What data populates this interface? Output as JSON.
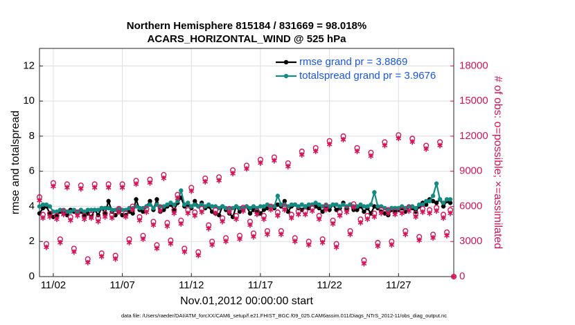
{
  "chart_data": {
    "type": "line",
    "title": "Northern Hemisphere 815184 / 831669 = 98.018%",
    "subtitle": "ACARS_HORIZONTAL_WIND @ 525 hPa",
    "xlabel": "Nov.01,2012 00:00:00 start",
    "ylabel": "rmse and totalspread",
    "y2label": "# of obs: o=possible; ×=assimilated",
    "footnote": "data file: /Users/raeder/DAI/ATM_forcXX/CAM6_setup/f.e21.FHIST_BGC.f09_025.CAM6assim.011/Diags_NTrS_2012-11/obs_diag_output.nc",
    "grid": true,
    "legend": "upper right",
    "xlim": [
      0,
      30
    ],
    "ylim": [
      0,
      13
    ],
    "y2lim": [
      0,
      19500
    ],
    "xticks": [
      {
        "value": 1,
        "label": "11/02"
      },
      {
        "value": 6,
        "label": "11/07"
      },
      {
        "value": 11,
        "label": "11/12"
      },
      {
        "value": 16,
        "label": "11/17"
      },
      {
        "value": 21,
        "label": "11/22"
      },
      {
        "value": 26,
        "label": "11/27"
      }
    ],
    "yticks": [
      0,
      2,
      4,
      6,
      8,
      10,
      12
    ],
    "y2ticks": [
      0,
      3000,
      6000,
      9000,
      12000,
      15000,
      18000
    ],
    "x": [
      0,
      0.25,
      0.5,
      0.75,
      1,
      1.25,
      1.5,
      1.75,
      2,
      2.25,
      2.5,
      2.75,
      3,
      3.25,
      3.5,
      3.75,
      4,
      4.25,
      4.5,
      4.75,
      5,
      5.25,
      5.5,
      5.75,
      6,
      6.25,
      6.5,
      6.75,
      7,
      7.25,
      7.5,
      7.75,
      8,
      8.25,
      8.5,
      8.75,
      9,
      9.25,
      9.5,
      9.75,
      10,
      10.25,
      10.5,
      10.75,
      11,
      11.25,
      11.5,
      11.75,
      12,
      12.25,
      12.5,
      12.75,
      13,
      13.25,
      13.5,
      13.75,
      14,
      14.25,
      14.5,
      14.75,
      15,
      15.25,
      15.5,
      15.75,
      16,
      16.25,
      16.5,
      16.75,
      17,
      17.25,
      17.5,
      17.75,
      18,
      18.25,
      18.5,
      18.75,
      19,
      19.25,
      19.5,
      19.75,
      20,
      20.25,
      20.5,
      20.75,
      21,
      21.25,
      21.5,
      21.75,
      22,
      22.25,
      22.5,
      22.75,
      23,
      23.25,
      23.5,
      23.75,
      24,
      24.25,
      24.5,
      24.75,
      25,
      25.25,
      25.5,
      25.75,
      26,
      26.25,
      26.5,
      26.75,
      27,
      27.25,
      27.5,
      27.75,
      28,
      28.25,
      28.5,
      28.75,
      29,
      29.25,
      29.5,
      29.75,
      30
    ],
    "series": [
      {
        "name": "rmse grand pr = 3.8869",
        "color": "#000000",
        "marker": "o",
        "values": [
          3.6,
          3.9,
          4.0,
          3.6,
          3.4,
          3.5,
          3.7,
          3.6,
          3.5,
          3.8,
          3.7,
          3.6,
          3.7,
          3.5,
          3.6,
          3.4,
          3.8,
          3.5,
          3.9,
          3.6,
          4.3,
          3.7,
          3.5,
          3.7,
          3.5,
          3.5,
          3.7,
          3.6,
          4.4,
          3.8,
          3.7,
          4.0,
          4.3,
          3.8,
          4.4,
          3.7,
          3.8,
          4.0,
          4.1,
          3.8,
          4.2,
          4.5,
          4.0,
          4.1,
          3.9,
          4.3,
          4.0,
          4.2,
          3.9,
          4.0,
          3.7,
          3.6,
          3.5,
          4.0,
          3.8,
          3.6,
          3.4,
          4.0,
          3.7,
          3.8,
          4.0,
          3.6,
          3.8,
          3.7,
          3.6,
          3.8,
          3.9,
          4.0,
          3.9,
          4.1,
          4.0,
          4.3,
          3.7,
          4.0,
          4.1,
          3.9,
          3.8,
          4.0,
          3.9,
          4.1,
          4.0,
          3.9,
          3.7,
          4.0,
          3.8,
          4.1,
          3.8,
          3.9,
          4.2,
          3.9,
          4.1,
          3.8,
          3.8,
          4.0,
          3.7,
          3.9,
          3.6,
          4.0,
          3.9,
          3.7,
          3.6,
          3.5,
          3.8,
          3.7,
          3.8,
          3.9,
          3.7,
          4.0,
          3.9,
          3.7,
          4.0,
          4.2,
          4.1,
          4.4,
          4.3,
          4.2,
          4.4,
          4.0,
          4.3,
          4.2,
          null
        ]
      },
      {
        "name": "totalspread grand pr = 3.9676",
        "color": "#138a82",
        "marker": "o",
        "values": [
          4.0,
          4.1,
          4.1,
          4.0,
          3.7,
          3.7,
          3.8,
          3.8,
          3.7,
          3.7,
          3.8,
          3.7,
          3.8,
          3.7,
          3.8,
          3.8,
          3.8,
          3.8,
          3.9,
          3.9,
          3.9,
          3.8,
          3.8,
          3.9,
          3.8,
          3.8,
          3.9,
          3.9,
          4.0,
          3.9,
          3.9,
          4.0,
          4.1,
          3.9,
          4.1,
          4.0,
          4.0,
          4.1,
          4.2,
          4.1,
          4.3,
          4.9,
          4.1,
          4.2,
          4.0,
          4.1,
          4.0,
          4.1,
          4.0,
          4.1,
          4.0,
          4.0,
          3.9,
          4.0,
          3.9,
          3.9,
          3.9,
          4.0,
          3.9,
          3.9,
          4.0,
          3.9,
          4.0,
          3.9,
          4.0,
          4.0,
          4.1,
          4.0,
          4.0,
          4.6,
          4.1,
          4.1,
          4.0,
          4.1,
          4.1,
          4.0,
          4.1,
          4.0,
          4.1,
          4.1,
          4.2,
          4.1,
          4.0,
          4.1,
          4.0,
          4.1,
          4.1,
          4.0,
          4.1,
          4.0,
          4.1,
          4.0,
          4.0,
          4.1,
          4.0,
          4.0,
          4.1,
          4.8,
          4.0,
          4.0,
          3.9,
          3.8,
          3.9,
          3.9,
          3.9,
          4.0,
          3.9,
          4.0,
          4.0,
          3.9,
          4.1,
          4.1,
          4.3,
          4.3,
          4.6,
          5.3,
          4.4,
          4.2,
          4.4,
          4.4,
          null
        ]
      },
      {
        "axis": "y2",
        "color": "#d4145a",
        "marker": "circle",
        "values": [
          6800,
          5300,
          2800,
          5400,
          8000,
          5200,
          3200,
          5600,
          7900,
          5100,
          2400,
          5500,
          7800,
          5200,
          1500,
          5300,
          7900,
          5000,
          2000,
          5400,
          7900,
          5300,
          1800,
          5800,
          7900,
          5400,
          3200,
          6000,
          8200,
          5100,
          3500,
          5800,
          8300,
          4700,
          2700,
          5900,
          8700,
          4600,
          3100,
          5700,
          7000,
          4800,
          2400,
          5700,
          7600,
          5500,
          2100,
          5800,
          8400,
          4400,
          3000,
          5700,
          8500,
          5000,
          3300,
          5800,
          9100,
          5200,
          3500,
          5900,
          9500,
          4700,
          3700,
          5600,
          10000,
          5200,
          3900,
          6000,
          10200,
          5500,
          3900,
          6000,
          9700,
          5300,
          3300,
          5600,
          10700,
          5600,
          3000,
          5900,
          11000,
          5200,
          3200,
          6000,
          11600,
          4800,
          2800,
          5500,
          12000,
          5800,
          3900,
          6200,
          11000,
          4900,
          1400,
          5200,
          10600,
          5400,
          2900,
          5700,
          11500,
          5700,
          3000,
          5600,
          12100,
          5700,
          3900,
          5900,
          11800,
          5400,
          3400,
          5800,
          11200,
          5700,
          3600,
          5900,
          11500,
          5300,
          3800,
          5700,
          0
        ]
      },
      {
        "axis": "y2",
        "color": "#d4145a",
        "marker": "asterisk",
        "values": [
          6500,
          5000,
          2500,
          5100,
          7700,
          4900,
          2900,
          5300,
          7600,
          4800,
          2100,
          5200,
          7500,
          4900,
          1200,
          5000,
          7600,
          4700,
          1700,
          5100,
          7600,
          5000,
          1500,
          5500,
          7600,
          5100,
          2900,
          5700,
          7900,
          4800,
          3200,
          5500,
          8000,
          4400,
          2400,
          5600,
          8400,
          4300,
          2800,
          5400,
          6700,
          4500,
          2100,
          5400,
          7300,
          5200,
          1800,
          5500,
          8100,
          4100,
          2700,
          5400,
          8200,
          4700,
          3000,
          5500,
          8800,
          4900,
          3200,
          5600,
          9200,
          4400,
          3400,
          5300,
          9700,
          4900,
          3600,
          5700,
          9900,
          5200,
          3600,
          5700,
          9400,
          5000,
          3000,
          5300,
          10400,
          5300,
          2700,
          5600,
          10700,
          4900,
          2900,
          5700,
          11300,
          4500,
          2500,
          5200,
          11700,
          5500,
          3600,
          5900,
          10700,
          4600,
          1100,
          4900,
          10300,
          5100,
          2600,
          5400,
          11200,
          5400,
          2700,
          5300,
          11800,
          5400,
          3600,
          5600,
          11500,
          5100,
          3100,
          5500,
          10900,
          5400,
          3300,
          5600,
          11200,
          5000,
          3500,
          5400,
          0
        ]
      }
    ]
  }
}
